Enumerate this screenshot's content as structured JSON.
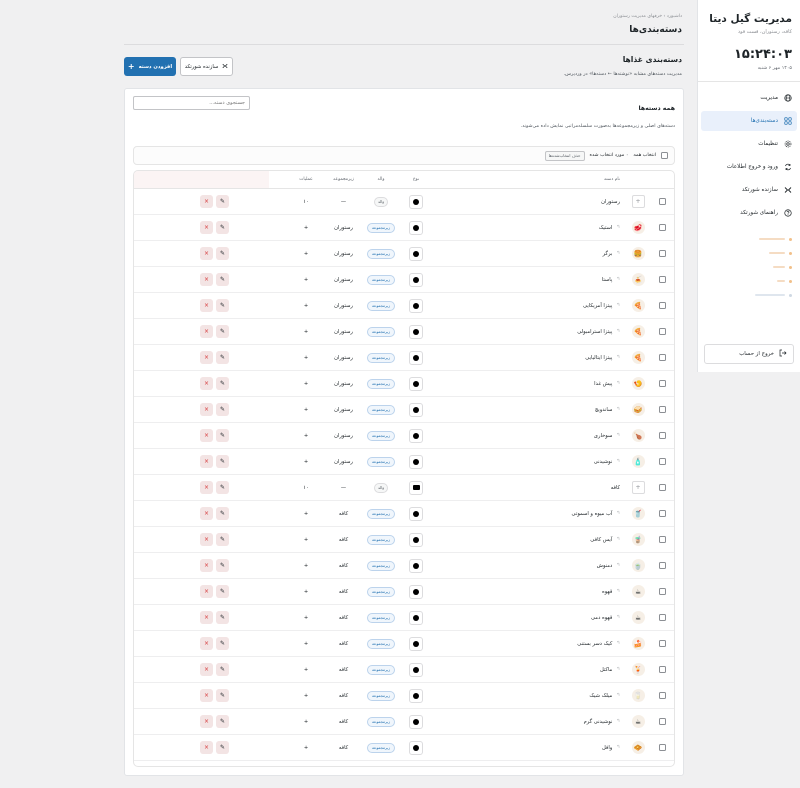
{
  "sidebar": {
    "brand": "مدیریت گیل دیتا",
    "subtitle": "کافه، رستوران، فست فود",
    "clock": "۱۵:۲۴:۰۳",
    "date": "۱۴۰۵ مهر ۶ شنبه",
    "items": [
      {
        "label": "مدیریت",
        "icon": "globe-icon"
      },
      {
        "label": "دسته‌بندی‌ها",
        "icon": "grid-icon"
      },
      {
        "label": "تنظیمات",
        "icon": "gear-icon"
      },
      {
        "label": "ورود و خروج اطلاعات",
        "icon": "sync-icon"
      },
      {
        "label": "سازنده شورتکد",
        "icon": "shortcode-icon"
      },
      {
        "label": "راهنمای شورتکد",
        "icon": "help-icon"
      }
    ],
    "logout": "خروج از حساب"
  },
  "header": {
    "breadcrumb": "داشبورد › خرفهای مدیریت رستوران",
    "title": "دسته‌بندی‌ها"
  },
  "section": {
    "title": "دسته‌بندی غذاها",
    "description": "مدیریت دسته‌های مشابه «نوشته‌ها ← دسته‌ها» در وردپرس.",
    "add_button": "افزودن دسته",
    "shortcode_button": "سازنده شورتکد"
  },
  "card": {
    "search_placeholder": "جستجوی دسته...",
    "all_title": "همه دسته‌ها",
    "all_desc": "دسته‌های اصلی و زیرمجموعه‌ها به‌صورت سلسله‌مراتبی نمایش داده می‌شوند.",
    "select_all": "انتخاب همه",
    "selected_count": "۰ مورد انتخاب شده",
    "delete_selected": "حذف انتخاب‌شده‌ها"
  },
  "table": {
    "columns": {
      "name": "نام دسته",
      "type": "نوع",
      "parent": "والد",
      "sub": "زیرمجموعه",
      "actions": "عملیات"
    },
    "rows": [
      {
        "name": "رستوران",
        "level": 0,
        "thumb": "+",
        "type": "dot",
        "badge": "والد",
        "badge_kind": "parent",
        "parent_name": "—",
        "count": "۱۰"
      },
      {
        "name": "استیک",
        "level": 1,
        "thumb": "🥩",
        "type": "dot",
        "badge": "زیرمجموعه",
        "badge_kind": "child",
        "parent_name": "رستوران",
        "count": "+"
      },
      {
        "name": "برگر",
        "level": 1,
        "thumb": "🍔",
        "type": "dot",
        "badge": "زیرمجموعه",
        "badge_kind": "child",
        "parent_name": "رستوران",
        "count": "+"
      },
      {
        "name": "پاستا",
        "level": 1,
        "thumb": "🍝",
        "type": "dot",
        "badge": "زیرمجموعه",
        "badge_kind": "child",
        "parent_name": "رستوران",
        "count": "+"
      },
      {
        "name": "پیتزا آمریکایی",
        "level": 1,
        "thumb": "🍕",
        "type": "dot",
        "badge": "زیرمجموعه",
        "badge_kind": "child",
        "parent_name": "رستوران",
        "count": "+"
      },
      {
        "name": "پیتزا استرامبولی",
        "level": 1,
        "thumb": "🍕",
        "type": "dot",
        "badge": "زیرمجموعه",
        "badge_kind": "child",
        "parent_name": "رستوران",
        "count": "+"
      },
      {
        "name": "پیتزا ایتالیایی",
        "level": 1,
        "thumb": "🍕",
        "type": "dot",
        "badge": "زیرمجموعه",
        "badge_kind": "child",
        "parent_name": "رستوران",
        "count": "+"
      },
      {
        "name": "پیش غذا",
        "level": 1,
        "thumb": "🍤",
        "type": "dot",
        "badge": "زیرمجموعه",
        "badge_kind": "child",
        "parent_name": "رستوران",
        "count": "+"
      },
      {
        "name": "ساندویچ",
        "level": 1,
        "thumb": "🥪",
        "type": "dot",
        "badge": "زیرمجموعه",
        "badge_kind": "child",
        "parent_name": "رستوران",
        "count": "+"
      },
      {
        "name": "سوخاری",
        "level": 1,
        "thumb": "🍗",
        "type": "dot",
        "badge": "زیرمجموعه",
        "badge_kind": "child",
        "parent_name": "رستوران",
        "count": "+"
      },
      {
        "name": "نوشیدنی",
        "level": 1,
        "thumb": "🧴",
        "type": "dot",
        "badge": "زیرمجموعه",
        "badge_kind": "child",
        "parent_name": "رستوران",
        "count": "+"
      },
      {
        "name": "کافه",
        "level": 0,
        "thumb": "+",
        "type": "cam",
        "badge": "والد",
        "badge_kind": "parent",
        "parent_name": "—",
        "count": "۱۰"
      },
      {
        "name": "آب میوه و اسموتی",
        "level": 1,
        "thumb": "🥤",
        "type": "dot",
        "badge": "زیرمجموعه",
        "badge_kind": "child",
        "parent_name": "کافه",
        "count": "+"
      },
      {
        "name": "آیس کافی",
        "level": 1,
        "thumb": "🧋",
        "type": "dot",
        "badge": "زیرمجموعه",
        "badge_kind": "child",
        "parent_name": "کافه",
        "count": "+"
      },
      {
        "name": "دمنوش",
        "level": 1,
        "thumb": "🍵",
        "type": "dot",
        "badge": "زیرمجموعه",
        "badge_kind": "child",
        "parent_name": "کافه",
        "count": "+"
      },
      {
        "name": "قهوه",
        "level": 1,
        "thumb": "☕",
        "type": "dot",
        "badge": "زیرمجموعه",
        "badge_kind": "child",
        "parent_name": "کافه",
        "count": "+"
      },
      {
        "name": "قهوه دمی",
        "level": 1,
        "thumb": "☕",
        "type": "dot",
        "badge": "زیرمجموعه",
        "badge_kind": "child",
        "parent_name": "کافه",
        "count": "+"
      },
      {
        "name": "کیک دسر بستنی",
        "level": 1,
        "thumb": "🍰",
        "type": "dot",
        "badge": "زیرمجموعه",
        "badge_kind": "child",
        "parent_name": "کافه",
        "count": "+"
      },
      {
        "name": "ماکتل",
        "level": 1,
        "thumb": "🍹",
        "type": "dot",
        "badge": "زیرمجموعه",
        "badge_kind": "child",
        "parent_name": "کافه",
        "count": "+"
      },
      {
        "name": "میلک شیک",
        "level": 1,
        "thumb": "🥛",
        "type": "dot",
        "badge": "زیرمجموعه",
        "badge_kind": "child",
        "parent_name": "کافه",
        "count": "+"
      },
      {
        "name": "نوشیدنی گرم",
        "level": 1,
        "thumb": "☕",
        "type": "dot",
        "badge": "زیرمجموعه",
        "badge_kind": "child",
        "parent_name": "کافه",
        "count": "+"
      },
      {
        "name": "وافل",
        "level": 1,
        "thumb": "🧇",
        "type": "dot",
        "badge": "زیرمجموعه",
        "badge_kind": "child",
        "parent_name": "کافه",
        "count": "+"
      }
    ],
    "edit_glyph": "✎",
    "delete_glyph": "×",
    "indent_glyph": "↰"
  },
  "colors": {
    "accent": "#2271b1",
    "danger": "#d63638",
    "action_bg": "#f3e4e4"
  }
}
